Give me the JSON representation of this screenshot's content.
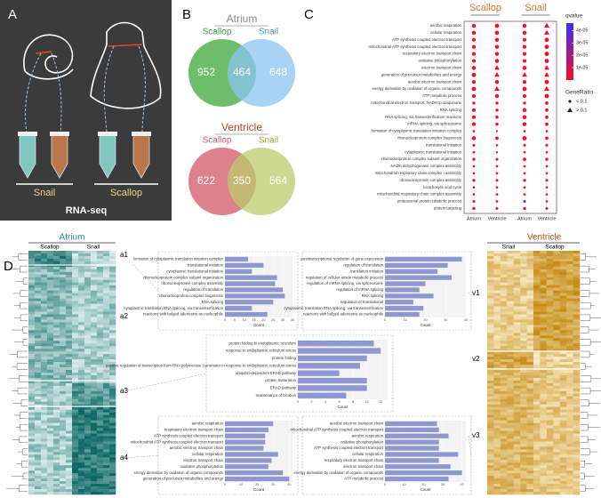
{
  "panel_a": {
    "label": "A",
    "snail": "Snail",
    "scallop": "Scallop",
    "method": "RNA-seq"
  },
  "panel_b": {
    "label": "B",
    "venns": [
      {
        "title": "Atrium",
        "left_name": "Scallop",
        "right_name": "Snail",
        "left_color": "#5db65a",
        "right_color": "#8cc4f2",
        "left_only": 952,
        "overlap": 464,
        "right_only": 648
      },
      {
        "title": "Ventricle",
        "left_name": "Scallop",
        "right_name": "Snail",
        "left_color": "#d9737f",
        "right_color": "#bccb6c",
        "left_only": 622,
        "overlap": 350,
        "right_only": 564
      }
    ]
  },
  "panel_c": {
    "label": "C",
    "groups": [
      "Scallop",
      "Snail"
    ],
    "columns": [
      "Atrium",
      "Ventricle",
      "Atrium",
      "Ventricle"
    ],
    "terms": [
      "aerobic respiration",
      "cellular respiration",
      "ATP synthesis coupled electron transport",
      "mitochondrial ATP synthesis coupled electron transport",
      "respiratory electron transport chain",
      "oxidative phosphorylation",
      "electron transport chain",
      "generation of precursor metabolites and energy",
      "aerobic electron transport chain",
      "energy derivation by oxidation of organic compounds",
      "ATP metabolic process",
      "mitochondrial electron transport, NADH to ubiquinone",
      "RNA splicing",
      "RNA splicing, via transesterification reactions",
      "mRNA splicing, via spliceosome",
      "formation of cytoplasmic translation initiation complex",
      "ribonucleoprotein complex biogenesis",
      "translational initiation",
      "cytoplasmic translational initiation",
      "ribonucleoprotein complex subunit organization",
      "NADH dehydrogenase complex assembly",
      "mitochondrial respiratory chain complex I assembly",
      "ribonucleoprotein complex assembly",
      "tricarboxylic acid cycle",
      "mitochondrial respiratory chain complex assembly",
      "proteasomal protein catabolic process",
      "protein targeting"
    ],
    "gene_ratio": [
      [
        0.08,
        0.09,
        0.08,
        0.13
      ],
      [
        0.08,
        0.09,
        0.08,
        0.14
      ],
      [
        0.07,
        0.08,
        0.07,
        0.09
      ],
      [
        0.07,
        0.08,
        0.07,
        0.09
      ],
      [
        0.07,
        0.08,
        0.07,
        0.09
      ],
      [
        0.07,
        0.08,
        0.07,
        0.09
      ],
      [
        0.08,
        0.11,
        0.08,
        0.12
      ],
      [
        0.09,
        0.12,
        0.11,
        0.15
      ],
      [
        0.07,
        0.08,
        0.07,
        0.09
      ],
      [
        0.09,
        0.12,
        0.09,
        0.14
      ],
      [
        0.07,
        0.08,
        0.07,
        0.09
      ],
      [
        0.05,
        0.05,
        0.05,
        0.06
      ],
      [
        0.07,
        0.05,
        0.08,
        0.06
      ],
      [
        0.07,
        0.05,
        0.08,
        0.06
      ],
      [
        0.07,
        0.05,
        0.08,
        0.06
      ],
      [
        0.03,
        0.02,
        0.03,
        0.03
      ],
      [
        0.08,
        0.06,
        0.09,
        0.06
      ],
      [
        0.04,
        0.03,
        0.04,
        0.04
      ],
      [
        0.03,
        0.02,
        0.03,
        0.03
      ],
      [
        0.05,
        0.04,
        0.06,
        0.05
      ],
      [
        0.03,
        0.03,
        0.03,
        0.03
      ],
      [
        0.03,
        0.03,
        0.03,
        0.03
      ],
      [
        0.05,
        0.04,
        0.05,
        0.04
      ],
      [
        0.03,
        0.03,
        0.03,
        0.03
      ],
      [
        0.03,
        0.03,
        0.03,
        0.03
      ],
      [
        0.04,
        0.03,
        0.04,
        0.03
      ],
      [
        0.05,
        0.04,
        0.05,
        0.04
      ]
    ],
    "qvalue": [
      [
        1e-08,
        1e-08,
        1e-08,
        1e-08
      ],
      [
        1e-08,
        1e-08,
        1e-08,
        1e-08
      ],
      [
        1e-08,
        1e-08,
        1e-08,
        1e-08
      ],
      [
        1e-08,
        1e-08,
        1e-08,
        1e-08
      ],
      [
        1e-08,
        1e-08,
        1e-08,
        1e-08
      ],
      [
        1e-08,
        1e-08,
        1e-08,
        1e-08
      ],
      [
        1e-08,
        1e-08,
        1e-08,
        1e-08
      ],
      [
        1e-08,
        1e-08,
        1e-08,
        1e-08
      ],
      [
        1e-08,
        1e-08,
        1e-08,
        1e-08
      ],
      [
        1e-08,
        1e-08,
        1e-08,
        1e-08
      ],
      [
        1e-08,
        1e-08,
        1e-08,
        1e-08
      ],
      [
        1e-08,
        1e-08,
        1e-08,
        1e-08
      ],
      [
        1e-08,
        1e-08,
        1e-08,
        1e-08
      ],
      [
        1e-08,
        1e-08,
        1e-08,
        1e-08
      ],
      [
        1e-08,
        1e-08,
        1e-08,
        1e-08
      ],
      [
        1e-08,
        1e-08,
        1e-08,
        1e-08
      ],
      [
        1e-08,
        1e-08,
        1e-08,
        1e-08
      ],
      [
        1e-08,
        1e-08,
        1e-08,
        1e-08
      ],
      [
        1e-08,
        1e-08,
        1e-08,
        1e-08
      ],
      [
        1e-08,
        1e-08,
        1e-08,
        1e-08
      ],
      [
        1e-08,
        1e-08,
        1e-08,
        1e-08
      ],
      [
        1e-08,
        1e-08,
        1e-08,
        1e-08
      ],
      [
        1e-08,
        1e-08,
        1e-08,
        1e-08
      ],
      [
        1e-08,
        1e-08,
        1e-08,
        1e-08
      ],
      [
        1e-08,
        1e-08,
        1e-08,
        1e-08
      ],
      [
        1e-08,
        1e-08,
        4e-05,
        1e-08
      ],
      [
        1e-08,
        1e-08,
        1e-08,
        1e-08
      ]
    ],
    "qvalue_title": "qvalue",
    "qlim": [
      0,
      4.6e-05
    ],
    "qticks": [
      {
        "value": 4e-05,
        "label": "4e-05"
      },
      {
        "value": 3e-05,
        "label": "3e-05"
      },
      {
        "value": 2e-05,
        "label": "2e-05"
      },
      {
        "value": 1e-05,
        "label": "1e-05"
      }
    ],
    "qcolors": [
      "#ff0a28",
      "#3a2cff"
    ],
    "ratio_title": "GeneRatio",
    "ratio_threshold": 0.1,
    "ratio_legend": [
      "< 0.1",
      "> 0.1"
    ]
  },
  "panel_d": {
    "label": "D",
    "atrium": {
      "title": "Atrium",
      "columns": [
        "Scallop",
        "Snail"
      ],
      "clusters": [
        "a1",
        "a2",
        "a3",
        "a4"
      ]
    },
    "ventricle": {
      "title": "Ventricle",
      "columns": [
        "Snail",
        "Scallop"
      ],
      "clusters": [
        "v1",
        "v2",
        "v3"
      ]
    },
    "bar_color": "#8e97cf",
    "bar_charts": [
      {
        "terms": [
          "formation of cytoplasmic translation initiation complex",
          "translational initiation",
          "cytoplasmic translational initiation",
          "ribonucleoprotein complex subunit organization",
          "ribonucleoprotein complex assembly",
          "regulation of translation",
          "ribonucleoprotein complex biogenesis",
          "RNA splicing",
          "cytoplasmic translation RNA splicing, via transesterification",
          "reactions with bulged adenosine as nucleophile"
        ],
        "values": [
          12,
          20,
          14,
          27,
          26,
          30,
          31,
          25,
          14,
          22
        ],
        "xlim": [
          0,
          35
        ],
        "xticks": [
          0,
          5,
          10,
          15,
          20,
          25,
          30,
          35
        ],
        "xlabel": "Count"
      },
      {
        "terms": [
          "posttranscriptional regulation of gene expression",
          "regulation of translation",
          "translation initiation",
          "regulation of cellular amide metabolic process",
          "regulation of mRNA splicing, via spliceosome",
          "regulation of mRNA splicing",
          "RNA splicing",
          "regulation of translational",
          "cytoplasmic translation RNA splicing, via transesterification",
          "reactions with bulged adenosine as nucleophile"
        ],
        "values": [
          38,
          31,
          26,
          33,
          20,
          17,
          24,
          14,
          19,
          17
        ],
        "xlim": [
          0,
          40
        ],
        "xticks": [
          0,
          10,
          20,
          30,
          40
        ],
        "xlabel": "Count"
      },
      {
        "terms": [
          "protein folding in endoplasmic reticulum",
          "response to endoplasmic reticulum stress",
          "protein folding",
          "positive regulation of transcription from RNA polymerase II promoter in response to endoplasmic reticulum stress",
          "ubiquitin-dependent ERAD pathway",
          "protein maturation",
          "ERAD pathway",
          "maintenance of location"
        ],
        "values": [
          11,
          12,
          10,
          9,
          6,
          10,
          10,
          7
        ],
        "xlim": [
          0,
          13
        ],
        "xticks": [
          0,
          2,
          4,
          6,
          8,
          10,
          12
        ],
        "xlabel": "Count"
      },
      {
        "terms": [
          "aerobic respiration",
          "respiratory electron transport chain",
          "ATP synthesis coupled electron transport",
          "mitochondrial ATP synthesis coupled electron transport",
          "aerobic electron transport chain",
          "cellular respiration",
          "electron transport chain",
          "oxidative phosphorylation",
          "energy derivation by oxidation of organic compounds",
          "generation of precursor metabolites and energy"
        ],
        "values": [
          30,
          27,
          25,
          25,
          24,
          33,
          29,
          27,
          36,
          40
        ],
        "xlim": [
          0,
          42
        ],
        "xticks": [
          0,
          10,
          20,
          30,
          40
        ],
        "xlabel": "Count"
      },
      {
        "terms": [
          "aerobic electron transport chain",
          "mitochondrial ATP synthesis coupled electron transport",
          "aerobic respiration",
          "oxidative phosphorylation",
          "ATP synthesis coupled electron transport",
          "cellular respiration",
          "respiratory electron transport chain",
          "electron transport chain",
          "energy derivation by oxidation of organic compounds",
          "ATP metabolic process"
        ],
        "values": [
          27,
          28,
          33,
          28,
          28,
          38,
          28,
          34,
          40,
          33
        ],
        "xlim": [
          0,
          42
        ],
        "xticks": [
          0,
          10,
          20,
          30,
          40
        ],
        "xlabel": "Count"
      }
    ]
  }
}
